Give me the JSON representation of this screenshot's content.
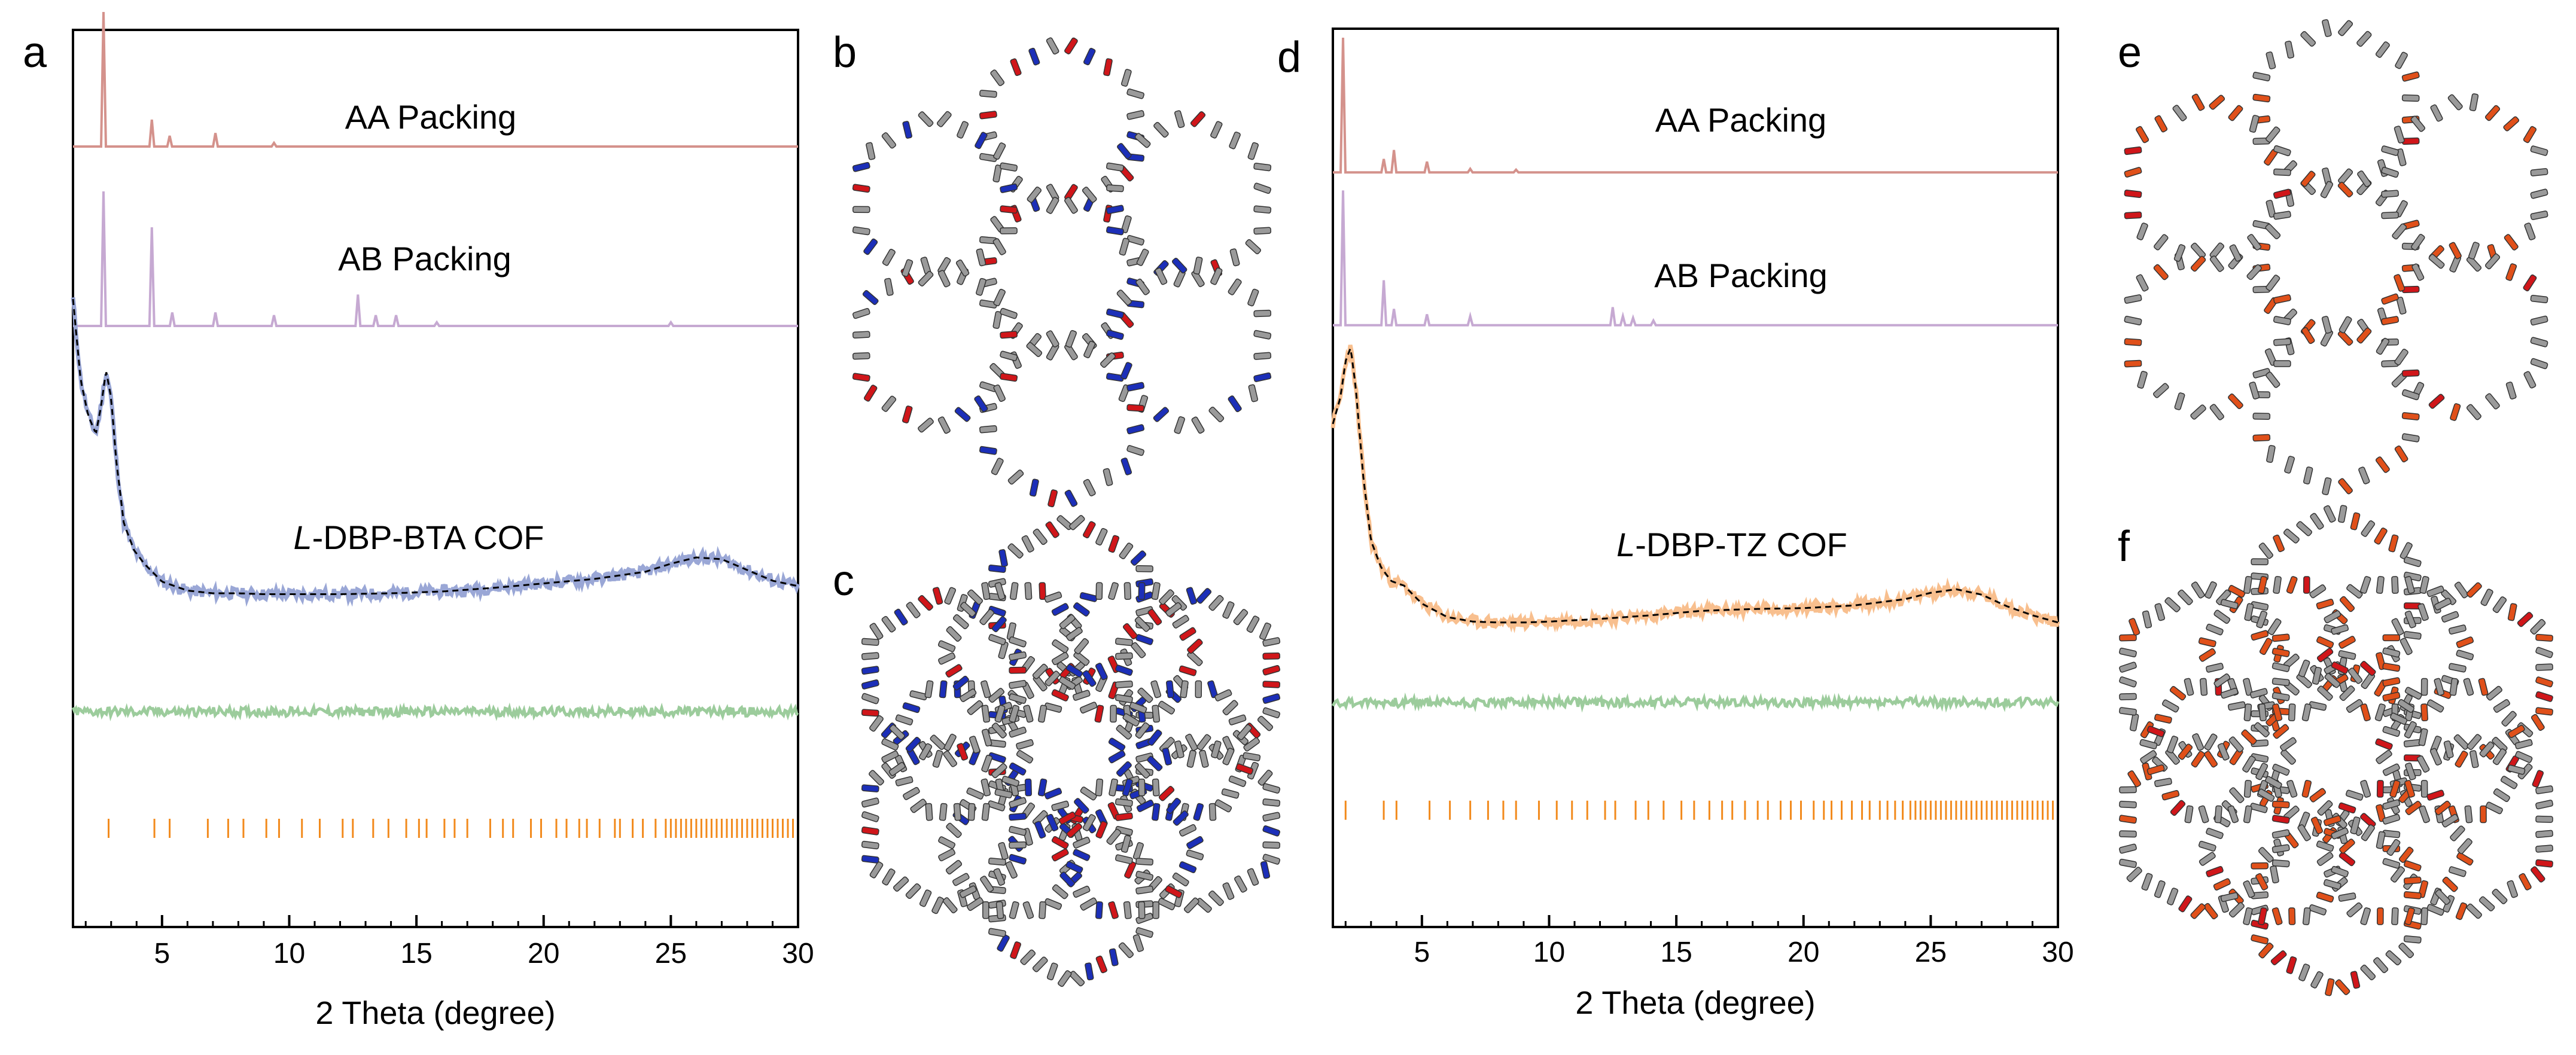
{
  "panels": {
    "a": "a",
    "b": "b",
    "c": "c",
    "d": "d",
    "e": "e",
    "f": "f"
  },
  "colors": {
    "aa": "#d4928c",
    "ab": "#c6a9d2",
    "bta": "#9aa7d6",
    "tz": "#f8bf8e",
    "residual": "#9ccc9c",
    "bragg": "#f28a1c",
    "fit": "#000000",
    "atom_gray": "#9a9a9a",
    "atom_blue": "#1c2fb8",
    "atom_red": "#d0161a",
    "atom_orange": "#e0501a"
  },
  "chart_data": [
    {
      "type": "line",
      "panel": "a",
      "xlabel": "2 Theta (degree)",
      "xlim": [
        1.5,
        30
      ],
      "xticks": [
        5,
        10,
        15,
        20,
        25,
        30
      ],
      "xtick_labels": [
        "5",
        "10",
        "15",
        "20",
        "25",
        "30"
      ],
      "ylabel": "",
      "series": [
        {
          "name": "AA Packing",
          "kind": "simulated",
          "baseline": 0.87,
          "peaks": [
            [
              2.7,
              0.15
            ],
            [
              4.6,
              0.03
            ],
            [
              5.3,
              0.012
            ],
            [
              7.1,
              0.015
            ],
            [
              9.4,
              0.004
            ]
          ]
        },
        {
          "name": "AB Packing",
          "kind": "simulated",
          "baseline": 0.67,
          "peaks": [
            [
              2.7,
              0.15
            ],
            [
              4.6,
              0.11
            ],
            [
              5.4,
              0.015
            ],
            [
              7.1,
              0.015
            ],
            [
              9.4,
              0.012
            ],
            [
              12.7,
              0.035
            ],
            [
              13.4,
              0.012
            ],
            [
              14.2,
              0.012
            ],
            [
              15.8,
              0.004
            ],
            [
              25.0,
              0.004
            ]
          ]
        },
        {
          "name": "L-DBP-BTA COF",
          "prefix": "L",
          "suffix": "-DBP-BTA COF",
          "kind": "experimental",
          "x": [
            1.5,
            1.8,
            2.1,
            2.4,
            2.6,
            2.8,
            3.0,
            3.2,
            3.5,
            3.9,
            4.3,
            5.0,
            6.0,
            7.0,
            8.0,
            9.0,
            10.0,
            12.0,
            14.0,
            16.0,
            18.0,
            20.0,
            22.0,
            24.0,
            25.0,
            26.0,
            27.0,
            28.0,
            29.0,
            30.0
          ],
          "y": [
            0.7,
            0.61,
            0.57,
            0.55,
            0.58,
            0.62,
            0.59,
            0.52,
            0.45,
            0.42,
            0.405,
            0.385,
            0.375,
            0.372,
            0.372,
            0.371,
            0.371,
            0.371,
            0.372,
            0.374,
            0.378,
            0.383,
            0.388,
            0.396,
            0.405,
            0.412,
            0.41,
            0.398,
            0.386,
            0.38
          ]
        },
        {
          "name": "residual",
          "kind": "difference",
          "level": 0.24
        },
        {
          "name": "Bragg positions",
          "kind": "ticks",
          "level": 0.11,
          "positions": [
            2.9,
            4.7,
            5.3,
            6.8,
            7.6,
            8.2,
            9.1,
            9.6,
            10.5,
            11.2,
            12.1,
            12.5,
            13.3,
            13.9,
            14.6,
            15.1,
            15.4,
            16.1,
            16.5,
            17.0,
            17.9,
            18.4,
            18.8,
            19.5,
            19.9,
            20.5,
            20.9,
            21.4,
            21.7,
            22.2,
            22.8,
            23.0,
            23.5,
            23.9,
            24.4,
            24.8,
            25.0,
            25.2,
            25.4,
            25.6,
            25.8,
            26.0,
            26.2,
            26.4,
            26.6,
            26.8,
            27.0,
            27.2,
            27.4,
            27.6,
            27.8,
            28.0,
            28.2,
            28.4,
            28.6,
            28.8,
            29.0,
            29.2,
            29.4,
            29.6,
            29.8
          ]
        }
      ]
    },
    {
      "type": "line",
      "panel": "d",
      "xlabel": "2 Theta (degree)",
      "xlim": [
        1.5,
        30
      ],
      "xticks": [
        5,
        10,
        15,
        20,
        25,
        30
      ],
      "xtick_labels": [
        "5",
        "10",
        "15",
        "20",
        "25",
        "30"
      ],
      "ylabel": "",
      "series": [
        {
          "name": "AA Packing",
          "kind": "simulated",
          "baseline": 0.84,
          "peaks": [
            [
              1.9,
              0.15
            ],
            [
              3.5,
              0.015
            ],
            [
              3.9,
              0.025
            ],
            [
              5.2,
              0.012
            ],
            [
              6.9,
              0.004
            ],
            [
              8.7,
              0.003
            ]
          ]
        },
        {
          "name": "AB Packing",
          "kind": "simulated",
          "baseline": 0.67,
          "peaks": [
            [
              1.9,
              0.15
            ],
            [
              3.5,
              0.05
            ],
            [
              3.9,
              0.018
            ],
            [
              5.2,
              0.012
            ],
            [
              6.9,
              0.01
            ],
            [
              12.5,
              0.02
            ],
            [
              12.9,
              0.01
            ],
            [
              13.3,
              0.008
            ],
            [
              14.1,
              0.005
            ]
          ]
        },
        {
          "name": "L-DBP-TZ COF",
          "prefix": "L",
          "suffix": "-DBP-TZ COF",
          "kind": "experimental",
          "x": [
            1.5,
            1.8,
            2.0,
            2.2,
            2.4,
            2.7,
            3.0,
            3.4,
            3.8,
            4.3,
            5.0,
            6.0,
            7.0,
            8.0,
            9.0,
            10.0,
            12.0,
            14.0,
            16.0,
            18.0,
            20.0,
            22.0,
            24.0,
            25.0,
            26.0,
            27.0,
            28.0,
            29.0,
            30.0
          ],
          "y": [
            0.56,
            0.59,
            0.63,
            0.645,
            0.6,
            0.5,
            0.43,
            0.4,
            0.385,
            0.38,
            0.36,
            0.345,
            0.34,
            0.339,
            0.339,
            0.34,
            0.343,
            0.347,
            0.352,
            0.354,
            0.355,
            0.358,
            0.365,
            0.372,
            0.376,
            0.37,
            0.357,
            0.347,
            0.339
          ]
        },
        {
          "name": "residual",
          "kind": "difference",
          "level": 0.25
        },
        {
          "name": "Bragg positions",
          "kind": "ticks",
          "level": 0.13,
          "positions": [
            2.0,
            3.5,
            4.0,
            5.3,
            6.1,
            6.9,
            7.6,
            8.2,
            8.7,
            9.6,
            10.3,
            10.9,
            11.5,
            12.2,
            12.6,
            13.4,
            13.9,
            14.5,
            15.2,
            15.7,
            16.3,
            16.8,
            17.2,
            17.7,
            18.2,
            18.6,
            19.1,
            19.5,
            19.9,
            20.4,
            20.8,
            21.1,
            21.5,
            21.9,
            22.3,
            22.6,
            23.0,
            23.3,
            23.6,
            23.9,
            24.2,
            24.4,
            24.6,
            24.8,
            25.0,
            25.2,
            25.4,
            25.6,
            25.8,
            26.0,
            26.2,
            26.4,
            26.6,
            26.8,
            27.0,
            27.2,
            27.4,
            27.6,
            27.8,
            28.0,
            28.2,
            28.4,
            28.6,
            28.8,
            29.0,
            29.2,
            29.4,
            29.6,
            29.8
          ]
        }
      ]
    }
  ]
}
